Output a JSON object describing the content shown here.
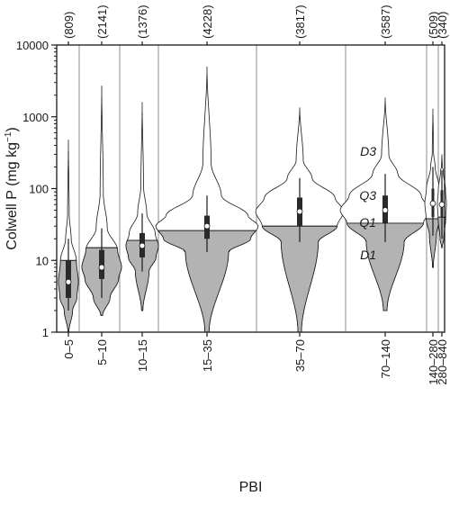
{
  "chart_data": {
    "type": "violin",
    "title": "",
    "xlabel": "PBI",
    "ylabel_main": "Colwell P (mg kg",
    "ylabel_sup": "−1",
    "ylabel_close": ")",
    "y_scale": "log",
    "ylim": [
      1,
      10000
    ],
    "y_ticks": [
      {
        "value": 1,
        "label": "1"
      },
      {
        "value": 10,
        "label": "10"
      },
      {
        "value": 100,
        "label": "100"
      },
      {
        "value": 1000,
        "label": "1000"
      },
      {
        "value": 10000,
        "label": "10000"
      }
    ],
    "grid": "vertical separators between PBI classes",
    "groups": [
      {
        "label": "0–5",
        "n": "(809)",
        "median": 5,
        "q1": 3,
        "q3": 10,
        "d1": 2,
        "d9": 20,
        "min": 1,
        "max": 480,
        "shade_top": 10
      },
      {
        "label": "5–10",
        "n": "(2141)",
        "median": 8,
        "q1": 5.5,
        "q3": 14,
        "d1": 3,
        "d9": 28,
        "min": 1.7,
        "max": 2700,
        "shade_top": 15
      },
      {
        "label": "10–15",
        "n": "(1376)",
        "median": 16,
        "q1": 11,
        "q3": 24,
        "d1": 7,
        "d9": 45,
        "min": 2,
        "max": 1600,
        "shade_top": 19
      },
      {
        "label": "15–35",
        "n": "(4228)",
        "median": 30,
        "q1": 20,
        "q3": 42,
        "d1": 13,
        "d9": 80,
        "min": 1,
        "max": 5000,
        "shade_top": 26
      },
      {
        "label": "35–70",
        "n": "(3817)",
        "median": 48,
        "q1": 30,
        "q3": 75,
        "d1": 18,
        "d9": 140,
        "min": 1,
        "max": 1350,
        "shade_top": 30
      },
      {
        "label": "70–140",
        "n": "(3587)",
        "median": 50,
        "q1": 33,
        "q3": 80,
        "d1": 18,
        "d9": 160,
        "min": 2,
        "max": 1850,
        "shade_top": 33
      },
      {
        "label": "140–280",
        "n": "(509)",
        "median": 62,
        "q1": 40,
        "q3": 100,
        "d1": 22,
        "d9": 200,
        "min": 8,
        "max": 1300,
        "shade_top": 38
      },
      {
        "label": "280–840",
        "n": "(340)",
        "median": 60,
        "q1": 40,
        "q3": 95,
        "d1": 20,
        "d9": 180,
        "min": 15,
        "max": 300,
        "shade_top": 40
      }
    ],
    "annotations": [
      {
        "text": "D3",
        "group": 5,
        "value": 330
      },
      {
        "text": "Q3",
        "group": 5,
        "value": 80
      },
      {
        "text": "Q1",
        "group": 5,
        "value": 34
      },
      {
        "text": "D1",
        "group": 5,
        "value": 12
      }
    ]
  }
}
